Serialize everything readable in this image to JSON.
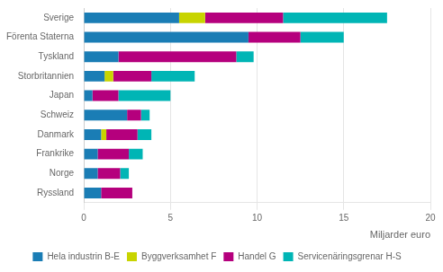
{
  "chart_data": {
    "type": "bar",
    "orientation": "horizontal",
    "stacked": true,
    "categories": [
      "Sverige",
      "Förenta Staterna",
      "Tyskland",
      "Storbritannien",
      "Japan",
      "Schweiz",
      "Danmark",
      "Frankrike",
      "Norge",
      "Ryssland"
    ],
    "series": [
      {
        "name": "Hela industrin B-E",
        "color": "#1a7db5",
        "values": [
          5.5,
          9.5,
          2.0,
          1.2,
          0.5,
          2.5,
          1.0,
          0.8,
          0.8,
          1.0
        ]
      },
      {
        "name": "Byggverksamhet F",
        "color": "#c8d400",
        "values": [
          1.5,
          0.0,
          0.0,
          0.5,
          0.0,
          0.0,
          0.3,
          0.0,
          0.0,
          0.0
        ]
      },
      {
        "name": "Handel G",
        "color": "#b5007d",
        "values": [
          4.5,
          3.0,
          6.8,
          2.2,
          1.5,
          0.8,
          1.8,
          1.8,
          1.3,
          1.8
        ]
      },
      {
        "name": "Servicenäringsgrenar H-S",
        "color": "#00b5b5",
        "values": [
          6.0,
          2.5,
          1.0,
          2.5,
          3.0,
          0.5,
          0.8,
          0.8,
          0.5,
          0.0
        ]
      }
    ],
    "xlabel": "Miljarder euro",
    "xlim": [
      0,
      20
    ],
    "xticks": [
      0,
      5,
      10,
      15,
      20
    ],
    "grid": true,
    "legend": "bottom"
  }
}
